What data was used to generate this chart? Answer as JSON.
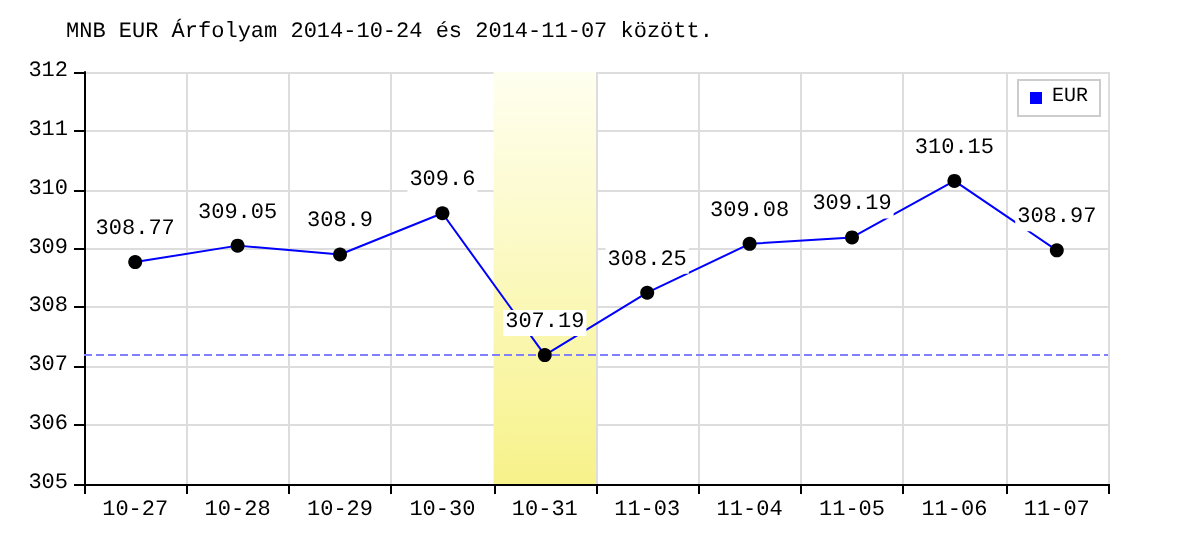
{
  "chart_data": {
    "type": "line",
    "title": "MNB EUR Árfolyam 2014-10-24 és 2014-11-07 között.",
    "categories": [
      "10-27",
      "10-28",
      "10-29",
      "10-30",
      "10-31",
      "11-03",
      "11-04",
      "11-05",
      "11-06",
      "11-07"
    ],
    "series": [
      {
        "name": "EUR",
        "color": "#0000ff",
        "values": [
          308.77,
          309.05,
          308.9,
          309.6,
          307.19,
          308.25,
          309.08,
          309.19,
          310.15,
          308.97
        ]
      }
    ],
    "ylim": [
      305,
      312
    ],
    "yticks": [
      305,
      306,
      307,
      308,
      309,
      310,
      311,
      312
    ],
    "grid": true,
    "legend": "top right",
    "marker": "circle",
    "line_style": "solid",
    "data_labels": true,
    "ref_lines": [
      {
        "axis": "y",
        "value": 307.19,
        "color": "#8080ff",
        "line_style": "dashed"
      }
    ],
    "bands": [
      {
        "axis": "x",
        "from": "10-31",
        "to": "10-31",
        "color": "#f7f28a"
      }
    ]
  }
}
